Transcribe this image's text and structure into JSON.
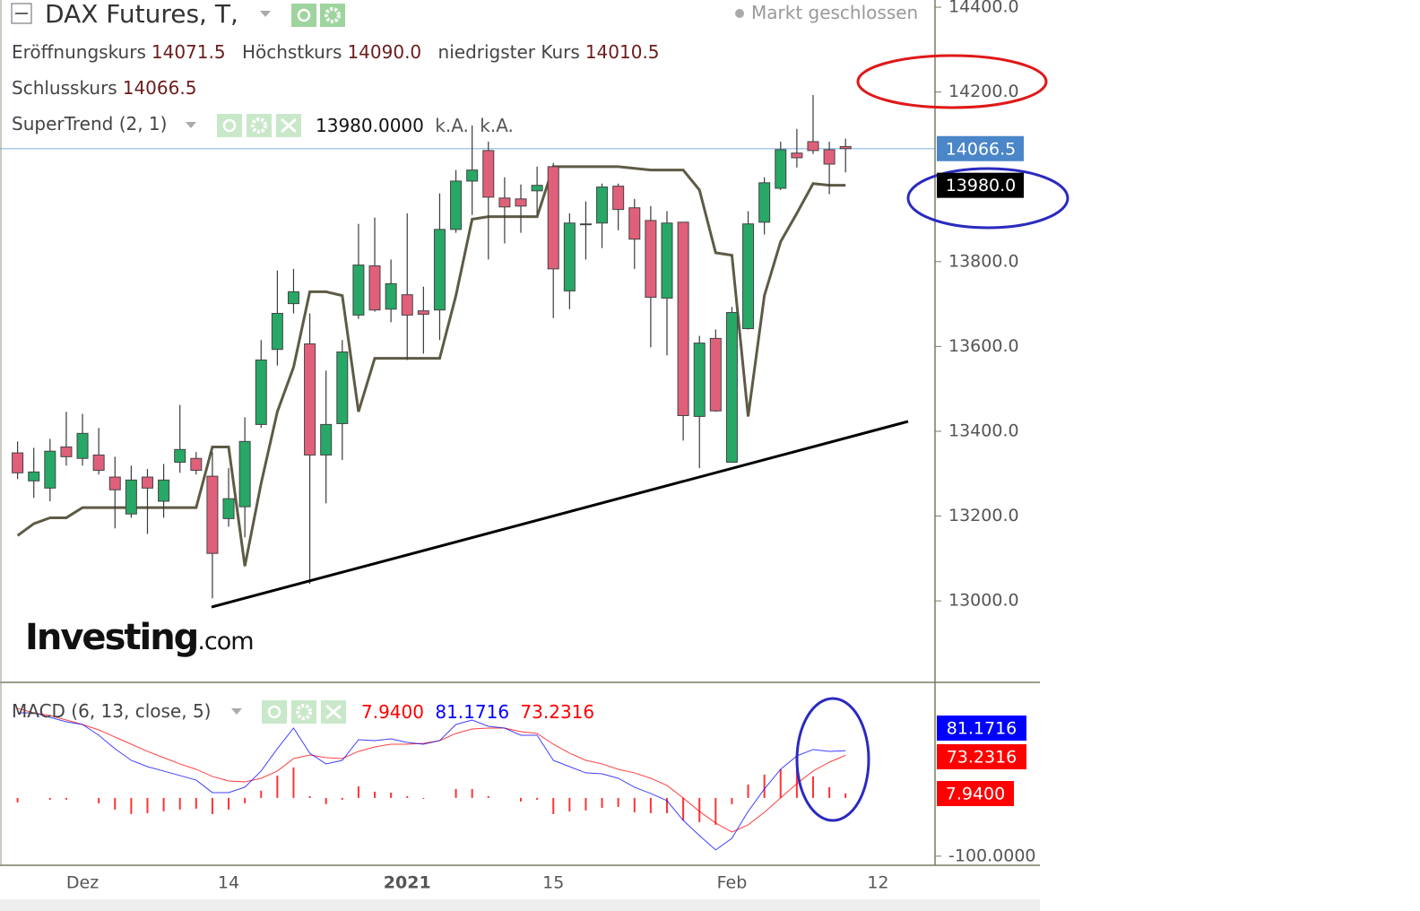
{
  "chart_data": [
    {
      "type": "candlestick",
      "title": "DAX Futures, T,",
      "status": "Markt geschlossen",
      "stats": [
        {
          "label": "Eröffnungskurs",
          "value": "14071.5"
        },
        {
          "label": "Höchstkurs",
          "value": "14090.0"
        },
        {
          "label": "niedrigster Kurs",
          "value": "14010.5"
        },
        {
          "label": "Schlusskurs",
          "value": "14066.5"
        }
      ],
      "categories": [
        null,
        null,
        null,
        null,
        "Dez",
        null,
        null,
        null,
        null,
        null,
        null,
        null,
        null,
        "14",
        null,
        null,
        null,
        null,
        null,
        null,
        null,
        null,
        null,
        null,
        "2021",
        null,
        null,
        null,
        null,
        null,
        null,
        null,
        null,
        "15",
        null,
        null,
        null,
        null,
        null,
        null,
        null,
        null,
        null,
        null,
        "Feb",
        null,
        null,
        null,
        null,
        null,
        null,
        null,
        null,
        "12"
      ],
      "open": [
        13349,
        13283,
        13266,
        13363,
        13336,
        13344,
        13292,
        13205,
        13292,
        13235,
        13327,
        13336,
        13294,
        13194,
        13222,
        13416,
        13593,
        13701,
        13606,
        13344,
        13418,
        13674,
        13790,
        13688,
        13722,
        13684,
        13686,
        13876,
        13990,
        14062,
        13950,
        13948,
        13967,
        14024,
        13731,
        13887,
        13891,
        13978,
        13927,
        13897,
        13714,
        13893,
        13435,
        13619,
        13327,
        13642,
        13893,
        13973,
        14056,
        14083,
        14064,
        14071.5,
        null,
        null
      ],
      "high": [
        13376,
        13361,
        13382,
        13446,
        13441,
        13408,
        13340,
        13319,
        13311,
        13323,
        13462,
        13351,
        13351,
        13313,
        13433,
        13615,
        13779,
        13783,
        13678,
        13543,
        13615,
        13889,
        13904,
        13805,
        13914,
        13741,
        13961,
        14016,
        14121,
        14083,
        13999,
        13982,
        14024,
        14033,
        13914,
        13942,
        13984,
        13984,
        13948,
        13931,
        13919,
        13893,
        13625,
        13640,
        13693,
        13919,
        13999,
        14083,
        14113,
        14193,
        14083,
        14090,
        null,
        null
      ],
      "low": [
        13287,
        13243,
        13235,
        13319,
        13319,
        13298,
        13171,
        13196,
        13158,
        13196,
        13302,
        13298,
        13006,
        13175,
        13150,
        13408,
        13555,
        13678,
        13040,
        13230,
        13332,
        13665,
        13682,
        13657,
        13568,
        13583,
        13615,
        13868,
        13910,
        13805,
        13843,
        13868,
        13910,
        13667,
        13688,
        13805,
        13832,
        13874,
        13783,
        13598,
        13579,
        13378,
        13313,
        13446,
        13327,
        13640,
        13864,
        13969,
        14022,
        14054,
        13959,
        14010.5,
        null,
        null
      ],
      "close": [
        13302,
        13304,
        13353,
        13340,
        13395,
        13308,
        13262,
        13285,
        13266,
        13285,
        13357,
        13308,
        13112,
        13241,
        13376,
        13568,
        13678,
        13729,
        13344,
        13416,
        13587,
        13792,
        13686,
        13748,
        13674,
        13676,
        13876,
        13990,
        14016,
        13952,
        13929,
        13931,
        13980,
        13783,
        13891,
        13889,
        13976,
        13923,
        13853,
        13716,
        13891,
        13437,
        13608,
        13448,
        13680,
        13889,
        13986,
        14064,
        14045,
        14062,
        14030,
        14066.5,
        null,
        null
      ],
      "up_color": "#27a866",
      "down_color": "#e0607a",
      "supertrend": {
        "name": "SuperTrend (2, 1)",
        "color": "#5e5b45",
        "legend_values": [
          "13980.0000",
          "k.A.",
          "k.A."
        ],
        "values": [
          13154,
          13182,
          13196,
          13196,
          13220,
          13220,
          13220,
          13220,
          13220,
          13220,
          13220,
          13220,
          13363,
          13363,
          13082,
          13277,
          13446,
          13551,
          13729,
          13729,
          13720,
          13446,
          13572,
          13572,
          13572,
          13572,
          13572,
          13720,
          13900,
          13906,
          13906,
          13906,
          13906,
          14024,
          14024,
          14024,
          14024,
          14024,
          14020,
          14016,
          14016,
          14016,
          13969,
          13821,
          13815,
          13435,
          13720,
          13847,
          13914,
          13984,
          13980,
          13980,
          null,
          null
        ]
      },
      "ylim": [
        12810,
        14417
      ],
      "yticks": [
        {
          "value": 14400,
          "label": "14400.0"
        },
        {
          "value": 14200,
          "label": "14200.0"
        },
        {
          "value": 13800,
          "label": "13800.0"
        },
        {
          "value": 13600,
          "label": "13600.0"
        },
        {
          "value": 13400,
          "label": "13400.0"
        },
        {
          "value": 13200,
          "label": "13200.0"
        },
        {
          "value": 13000,
          "label": "13000.0"
        }
      ],
      "price_markers": [
        {
          "value": 14066.5,
          "label": "14066.5",
          "color": "#4a86c8",
          "show_line": true
        },
        {
          "value": 13980,
          "label": "13980.0",
          "color": "#000000",
          "show_line": false
        }
      ]
    },
    {
      "type": "macd",
      "title": "MACD (6, 13, close, 5)",
      "histogram": {
        "color": "#ff0000",
        "legend_value": "7.9400",
        "values": [
          -7.6,
          0,
          -3,
          -3,
          0,
          -9.2,
          -20,
          -27.7,
          -26.2,
          -23,
          -20,
          -18.4,
          -27.7,
          -20,
          -9.2,
          12.4,
          38.4,
          52.3,
          3.1,
          -10.7,
          -3.1,
          20,
          10.8,
          9.2,
          3.1,
          -1.5,
          0,
          15.4,
          15.3,
          3.1,
          0,
          -6.1,
          -3.1,
          -27.7,
          -23.1,
          -21.5,
          -17,
          -15.4,
          -24.6,
          -26.1,
          -26.1,
          -38.5,
          -41.5,
          -46.1,
          -10.7,
          23.1,
          40,
          49.2,
          47.7,
          36.9,
          18.5,
          7.94,
          null,
          null
        ]
      },
      "macd": {
        "color": "#0000ff",
        "legend_value": "81.1716",
        "values": [
          146.2,
          146.2,
          138.5,
          130.8,
          126.2,
          107.7,
          84.6,
          64.6,
          53.8,
          46.2,
          38.5,
          30.8,
          9.2,
          9.2,
          18.5,
          46.2,
          84.6,
          120,
          76.9,
          58.5,
          64.6,
          100,
          98.5,
          101.5,
          95.4,
          92.3,
          98.5,
          126.2,
          133.8,
          123.1,
          120,
          107.7,
          107.7,
          64.6,
          53.8,
          43.1,
          41.5,
          33.8,
          18.5,
          7.7,
          -4.6,
          -38.5,
          -64.6,
          -89.2,
          -69.2,
          -23.1,
          15.4,
          49.2,
          72.3,
          83.1,
          80,
          81.1716,
          null,
          null
        ]
      },
      "signal": {
        "color": "#ff0000",
        "legend_value": "73.2316",
        "values": [
          153.8,
          146.2,
          141.5,
          133.8,
          126.2,
          116.9,
          104.6,
          92.3,
          80,
          69.2,
          58.5,
          49.2,
          36.9,
          29.2,
          27.7,
          33.8,
          46.2,
          67.7,
          73.8,
          69.2,
          67.7,
          80,
          87.7,
          92.3,
          92.3,
          93.8,
          98.5,
          110.8,
          118.5,
          120,
          120,
          113.8,
          110.8,
          92.3,
          76.9,
          64.6,
          58.5,
          49.2,
          43.1,
          33.8,
          21.5,
          0,
          -23.1,
          -43.1,
          -58.5,
          -46.2,
          -24.6,
          0,
          24.6,
          46.2,
          61.5,
          73.2316,
          null,
          null
        ]
      },
      "ylim": [
        -111,
        197
      ],
      "yticks": [
        {
          "value": -100,
          "label": "-100.0000"
        }
      ]
    }
  ],
  "branding": {
    "logo": "Investing",
    "logo_suffix": ".com"
  }
}
